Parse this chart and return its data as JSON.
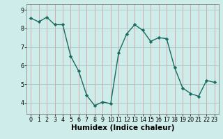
{
  "x": [
    0,
    1,
    2,
    3,
    4,
    5,
    6,
    7,
    8,
    9,
    10,
    11,
    12,
    13,
    14,
    15,
    16,
    17,
    18,
    19,
    20,
    21,
    22,
    23
  ],
  "y": [
    8.55,
    8.35,
    8.6,
    8.2,
    8.2,
    6.5,
    5.7,
    4.4,
    3.85,
    4.05,
    3.95,
    6.7,
    7.7,
    8.2,
    7.9,
    7.3,
    7.5,
    7.45,
    5.9,
    4.8,
    4.5,
    4.35,
    5.2,
    5.1
  ],
  "line_color": "#1a6b5e",
  "marker": "D",
  "marker_size": 2.2,
  "line_width": 1.0,
  "xlabel": "Humidex (Indice chaleur)",
  "xlim": [
    -0.5,
    23.5
  ],
  "ylim": [
    3.4,
    9.3
  ],
  "yticks": [
    4,
    5,
    6,
    7,
    8,
    9
  ],
  "xticks": [
    0,
    1,
    2,
    3,
    4,
    5,
    6,
    7,
    8,
    9,
    10,
    11,
    12,
    13,
    14,
    15,
    16,
    17,
    18,
    19,
    20,
    21,
    22,
    23
  ],
  "bg_color": "#cdecea",
  "grid_color": "#b0c8c6",
  "grid_color_minor": "#e8b0b0",
  "xlabel_fontsize": 7.5,
  "tick_fontsize": 5.8
}
